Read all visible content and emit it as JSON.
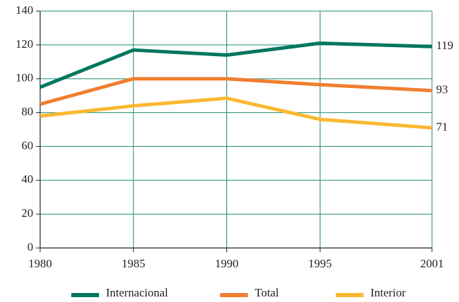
{
  "chart_data": {
    "type": "line",
    "x": [
      1980,
      1985,
      1990,
      1995,
      2001
    ],
    "series": [
      {
        "name": "Internacional",
        "color": "#00775f",
        "values": [
          95,
          117,
          114,
          121,
          119
        ]
      },
      {
        "name": "Total",
        "color": "#f07f30",
        "values": [
          85,
          100,
          100,
          96.5,
          93
        ]
      },
      {
        "name": "Interior",
        "color": "#fbb830",
        "values": [
          78,
          84,
          88.5,
          76,
          71
        ]
      }
    ],
    "xlim": [
      1980,
      2001
    ],
    "xticks": [
      1980,
      1985,
      1990,
      1995,
      2001
    ],
    "ylim": [
      0,
      140
    ],
    "yticks": [
      0,
      20,
      40,
      60,
      80,
      100,
      120,
      140
    ],
    "grid": true,
    "grid_color": "#1f8a74",
    "legend": "bottom"
  }
}
